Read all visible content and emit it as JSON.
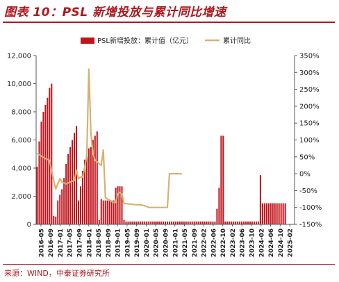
{
  "title": "图表 10：PSL 新增投放与累计同比增速",
  "source": "来源：WIND，中泰证券研究所",
  "colors": {
    "bar": "#c0141c",
    "line": "#d4b272",
    "title": "#b0171f"
  },
  "chart_data": {
    "type": "bar",
    "legend_position": "top",
    "grid": false,
    "x_tick_labels": [
      "2016-05",
      "2016-09",
      "2017-01",
      "2017-05",
      "2017-09",
      "2018-01",
      "2018-05",
      "2018-09",
      "2019-01",
      "2019-05",
      "2019-09",
      "2020-01",
      "2020-05",
      "2020-09",
      "2021-01",
      "2021-05",
      "2021-09",
      "2022-02",
      "2022-06",
      "2022-10",
      "2023-02",
      "2023-06",
      "2023-10",
      "2024-02",
      "2024-06",
      "2024-10",
      "2025-02"
    ],
    "y_left": {
      "min": 0,
      "max": 12000,
      "ticks": [
        "0",
        "2,000",
        "4,000",
        "6,000",
        "8,000",
        "10,000",
        "12,000"
      ]
    },
    "y_right": {
      "min": -150,
      "max": 350,
      "ticks": [
        "-150%",
        "-100%",
        "-50%",
        "0%",
        "50%",
        "100%",
        "150%",
        "200%",
        "250%",
        "300%",
        "350%"
      ]
    },
    "series": [
      {
        "name": "PSL新增投放：累计值（亿元）",
        "kind": "bar",
        "axis": "left",
        "values": [
          4100,
          5900,
          7300,
          8000,
          8500,
          9000,
          9700,
          10000,
          600,
          550,
          1700,
          2100,
          2500,
          3300,
          4300,
          5000,
          5500,
          6000,
          6500,
          7000,
          1700,
          2700,
          3800,
          4600,
          5300,
          5400,
          5500,
          6000,
          6300,
          6600,
          300,
          1800,
          1700,
          1700,
          1700,
          1700,
          1700,
          1700,
          2600,
          2700,
          2700,
          2700,
          300,
          200,
          200,
          200,
          200,
          200,
          200,
          200,
          200,
          200,
          200,
          200,
          200,
          200,
          200,
          200,
          200,
          200,
          200,
          200,
          200,
          200,
          200,
          200,
          200,
          200,
          200,
          200,
          200,
          200,
          200,
          200,
          200,
          200,
          200,
          200,
          200,
          200,
          200,
          200,
          200,
          200,
          200,
          200,
          200,
          1100,
          2600,
          6300,
          6300,
          200,
          200,
          200,
          200,
          200,
          200,
          200,
          200,
          200,
          200,
          200,
          200,
          200,
          200,
          200,
          200,
          200,
          3500,
          1500,
          1500,
          1500,
          1500,
          1500,
          1500,
          1500,
          1500,
          1500,
          1500,
          1500,
          1500,
          0,
          0,
          0,
          0
        ]
      },
      {
        "name": "累计同比",
        "kind": "line",
        "axis": "right",
        "points": [
          [
            0,
            60
          ],
          [
            2,
            52
          ],
          [
            4,
            45
          ],
          [
            6,
            40
          ],
          [
            8,
            -20
          ],
          [
            9,
            -45
          ],
          [
            10,
            -30
          ],
          [
            11,
            -15
          ],
          [
            12,
            -25
          ],
          [
            14,
            -30
          ],
          [
            16,
            -25
          ],
          [
            18,
            -20
          ],
          [
            19,
            10
          ],
          [
            20,
            -15
          ],
          [
            21,
            -10
          ],
          [
            22,
            -10
          ],
          [
            23,
            20
          ],
          [
            24,
            55
          ],
          [
            25,
            310
          ],
          [
            26,
            120
          ],
          [
            27,
            60
          ],
          [
            28,
            40
          ],
          [
            29,
            35
          ],
          [
            30,
            30
          ],
          [
            31,
            25
          ],
          [
            32,
            70
          ],
          [
            33,
            -70
          ],
          [
            34,
            -75
          ],
          [
            35,
            -78
          ],
          [
            36,
            -82
          ],
          [
            37,
            -85
          ],
          [
            38,
            -85
          ],
          [
            39,
            -60
          ],
          [
            40,
            -55
          ],
          [
            41,
            -60
          ],
          [
            42,
            -88
          ],
          [
            45,
            -90
          ],
          [
            48,
            -92
          ],
          [
            50,
            -92
          ],
          [
            52,
            -95
          ],
          [
            53,
            -97
          ],
          [
            54,
            -100
          ],
          [
            58,
            -100
          ],
          [
            63,
            -100
          ],
          [
            64,
            0
          ],
          [
            66,
            0
          ],
          [
            70,
            0
          ]
        ]
      }
    ]
  }
}
